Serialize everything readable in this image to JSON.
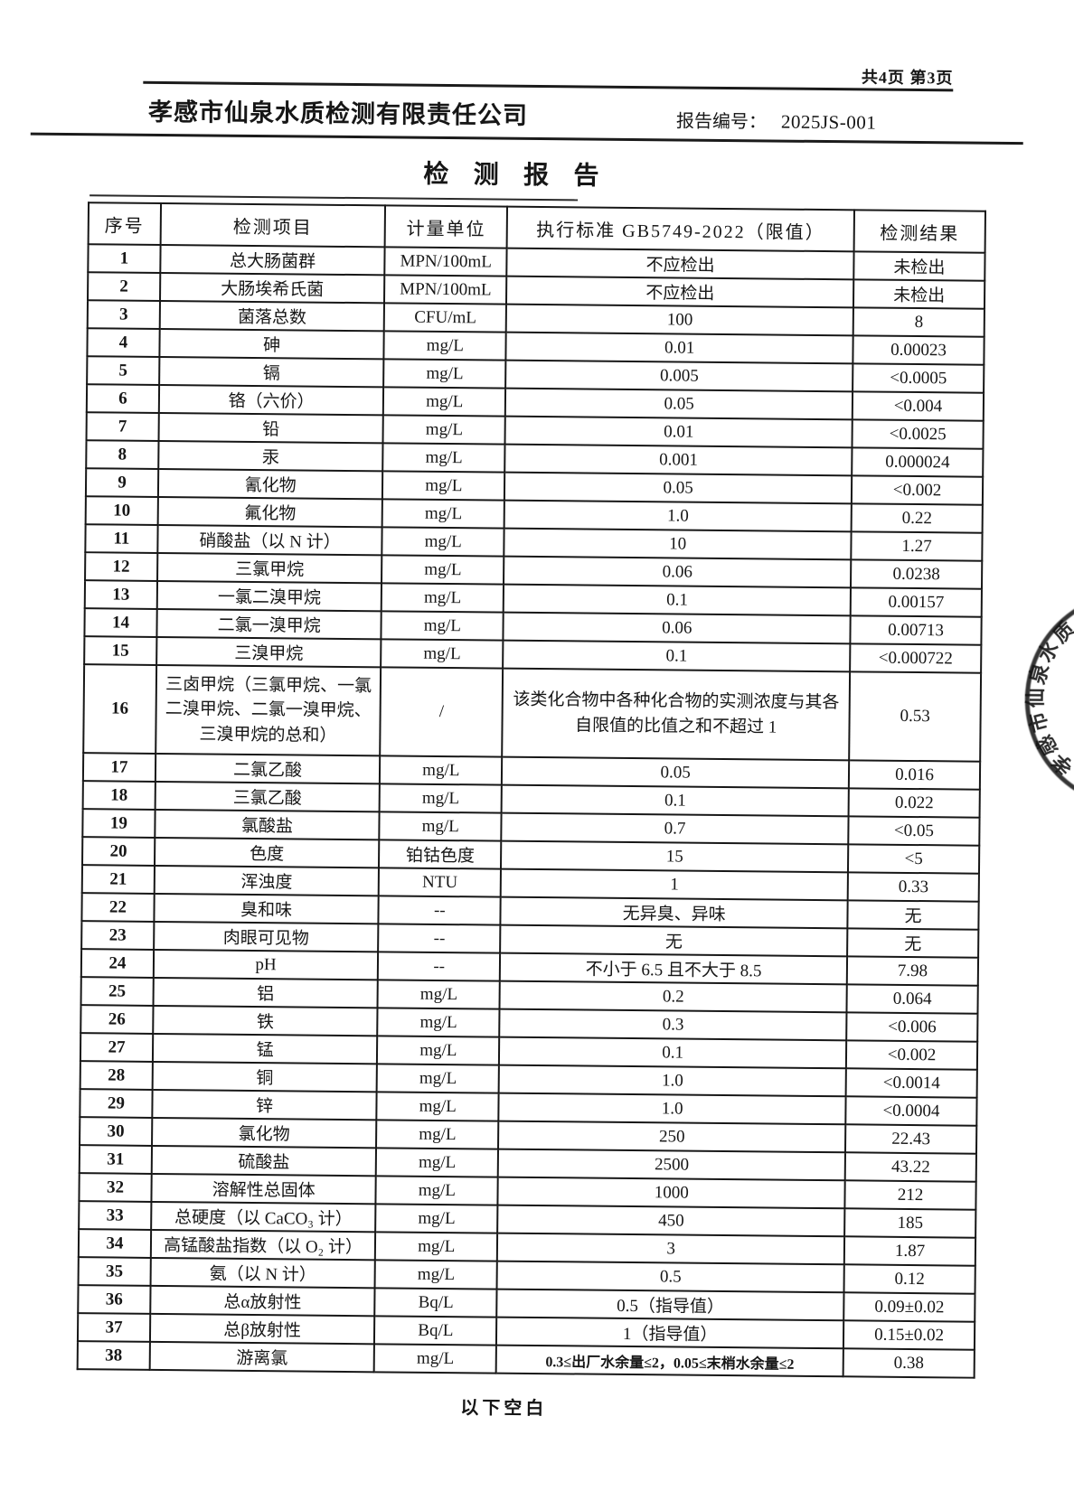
{
  "header": {
    "page_info": "共4页 第3页",
    "company_name": "孝感市仙泉水质检测有限责任公司",
    "report_no_label": "报告编号：",
    "report_no": "2025JS-001",
    "title": "检 测 报 告"
  },
  "table": {
    "headers": [
      "序号",
      "检测项目",
      "计量单位",
      "执行标准 GB5749-2022（限值）",
      "检测结果"
    ],
    "rows": [
      {
        "no": "1",
        "item": "总大肠菌群",
        "unit": "MPN/100mL",
        "standard": "不应检出",
        "result": "未检出"
      },
      {
        "no": "2",
        "item": "大肠埃希氏菌",
        "unit": "MPN/100mL",
        "standard": "不应检出",
        "result": "未检出"
      },
      {
        "no": "3",
        "item": "菌落总数",
        "unit": "CFU/mL",
        "standard": "100",
        "result": "8"
      },
      {
        "no": "4",
        "item": "砷",
        "unit": "mg/L",
        "standard": "0.01",
        "result": "0.00023"
      },
      {
        "no": "5",
        "item": "镉",
        "unit": "mg/L",
        "standard": "0.005",
        "result": "<0.0005"
      },
      {
        "no": "6",
        "item": "铬（六价）",
        "unit": "mg/L",
        "standard": "0.05",
        "result": "<0.004"
      },
      {
        "no": "7",
        "item": "铅",
        "unit": "mg/L",
        "standard": "0.01",
        "result": "<0.0025"
      },
      {
        "no": "8",
        "item": "汞",
        "unit": "mg/L",
        "standard": "0.001",
        "result": "0.000024"
      },
      {
        "no": "9",
        "item": "氰化物",
        "unit": "mg/L",
        "standard": "0.05",
        "result": "<0.002"
      },
      {
        "no": "10",
        "item": "氟化物",
        "unit": "mg/L",
        "standard": "1.0",
        "result": "0.22"
      },
      {
        "no": "11",
        "item": "硝酸盐（以 N 计）",
        "unit": "mg/L",
        "standard": "10",
        "result": "1.27"
      },
      {
        "no": "12",
        "item": "三氯甲烷",
        "unit": "mg/L",
        "standard": "0.06",
        "result": "0.0238"
      },
      {
        "no": "13",
        "item": "一氯二溴甲烷",
        "unit": "mg/L",
        "standard": "0.1",
        "result": "0.00157"
      },
      {
        "no": "14",
        "item": "二氯一溴甲烷",
        "unit": "mg/L",
        "standard": "0.06",
        "result": "0.00713"
      },
      {
        "no": "15",
        "item": "三溴甲烷",
        "unit": "mg/L",
        "standard": "0.1",
        "result": "<0.000722"
      },
      {
        "no": "16",
        "item": "三卤甲烷（三氯甲烷、一氯二溴甲烷、二氯一溴甲烷、三溴甲烷的总和）",
        "unit": "/",
        "standard": "该类化合物中各种化合物的实测浓度与其各自限值的比值之和不超过 1",
        "result": "0.53",
        "tall": true
      },
      {
        "no": "17",
        "item": "二氯乙酸",
        "unit": "mg/L",
        "standard": "0.05",
        "result": "0.016"
      },
      {
        "no": "18",
        "item": "三氯乙酸",
        "unit": "mg/L",
        "standard": "0.1",
        "result": "0.022"
      },
      {
        "no": "19",
        "item": "氯酸盐",
        "unit": "mg/L",
        "standard": "0.7",
        "result": "<0.05"
      },
      {
        "no": "20",
        "item": "色度",
        "unit": "铂钴色度",
        "standard": "15",
        "result": "<5"
      },
      {
        "no": "21",
        "item": "浑浊度",
        "unit": "NTU",
        "standard": "1",
        "result": "0.33"
      },
      {
        "no": "22",
        "item": "臭和味",
        "unit": "--",
        "standard": "无异臭、异味",
        "result": "无"
      },
      {
        "no": "23",
        "item": "肉眼可见物",
        "unit": "--",
        "standard": "无",
        "result": "无"
      },
      {
        "no": "24",
        "item": "pH",
        "unit": "--",
        "standard": "不小于 6.5 且不大于 8.5",
        "result": "7.98"
      },
      {
        "no": "25",
        "item": "铝",
        "unit": "mg/L",
        "standard": "0.2",
        "result": "0.064"
      },
      {
        "no": "26",
        "item": "铁",
        "unit": "mg/L",
        "standard": "0.3",
        "result": "<0.006"
      },
      {
        "no": "27",
        "item": "锰",
        "unit": "mg/L",
        "standard": "0.1",
        "result": "<0.002"
      },
      {
        "no": "28",
        "item": "铜",
        "unit": "mg/L",
        "standard": "1.0",
        "result": "<0.0014"
      },
      {
        "no": "29",
        "item": "锌",
        "unit": "mg/L",
        "standard": "1.0",
        "result": "<0.0004"
      },
      {
        "no": "30",
        "item": "氯化物",
        "unit": "mg/L",
        "standard": "250",
        "result": "22.43"
      },
      {
        "no": "31",
        "item": "硫酸盐",
        "unit": "mg/L",
        "standard": "2500",
        "result": "43.22"
      },
      {
        "no": "32",
        "item": "溶解性总固体",
        "unit": "mg/L",
        "standard": "1000",
        "result": "212"
      },
      {
        "no": "33",
        "item": "总硬度（以 CaCO₃ 计）",
        "unit": "mg/L",
        "standard": "450",
        "result": "185"
      },
      {
        "no": "34",
        "item": "高锰酸盐指数（以 O₂ 计）",
        "unit": "mg/L",
        "standard": "3",
        "result": "1.87"
      },
      {
        "no": "35",
        "item": "氨（以 N 计）",
        "unit": "mg/L",
        "standard": "0.5",
        "result": "0.12"
      },
      {
        "no": "36",
        "item": "总α放射性",
        "unit": "Bq/L",
        "standard": "0.5（指导值）",
        "result": "0.09±0.02"
      },
      {
        "no": "37",
        "item": "总β放射性",
        "unit": "Bq/L",
        "standard": "1（指导值）",
        "result": "0.15±0.02"
      },
      {
        "no": "38",
        "item": "游离氯",
        "unit": "mg/L",
        "standard": "0.3≤出厂水余量≤2，0.05≤末梢水余量≤2",
        "result": "0.38",
        "small_standard": true
      }
    ]
  },
  "footer": {
    "note": "以下空白"
  },
  "seal": {
    "visible_chars": [
      "孝",
      "感",
      "市",
      "仙",
      "泉",
      "水",
      "质"
    ]
  },
  "colors": {
    "ink": "#161616",
    "paper": "#ffffff"
  }
}
